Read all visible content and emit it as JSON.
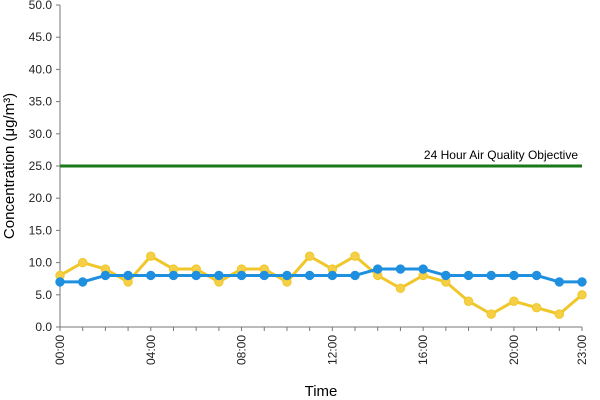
{
  "chart_data": {
    "type": "line",
    "title": "",
    "xlabel": "Time",
    "ylabel": "Concentration (μg/m³)",
    "ylim": [
      0,
      50
    ],
    "y_ticks": [
      "0.0",
      "5.0",
      "10.0",
      "15.0",
      "20.0",
      "25.0",
      "30.0",
      "35.0",
      "40.0",
      "45.0",
      "50.0"
    ],
    "x_tick_labels": [
      "00:00",
      "04:00",
      "08:00",
      "12:00",
      "16:00",
      "20:00",
      "23:00"
    ],
    "x_tick_hours": [
      0,
      4,
      8,
      12,
      16,
      20,
      23
    ],
    "grid": false,
    "legend": "none",
    "x": [
      0,
      1,
      2,
      3,
      4,
      5,
      6,
      7,
      8,
      9,
      10,
      11,
      12,
      13,
      14,
      15,
      16,
      17,
      18,
      19,
      20,
      21,
      22,
      23
    ],
    "series": [
      {
        "color": "#f0c72a",
        "marker_fill": "#f5cf45",
        "values": [
          8,
          10,
          9,
          7,
          11,
          9,
          9,
          7,
          9,
          9,
          7,
          11,
          9,
          11,
          8,
          6,
          8,
          7,
          4,
          2,
          4,
          3,
          2,
          5
        ]
      },
      {
        "color": "#1f8fe0",
        "marker_fill": "#1f8fe0",
        "values": [
          7,
          7,
          8,
          8,
          8,
          8,
          8,
          8,
          8,
          8,
          8,
          8,
          8,
          8,
          9,
          9,
          9,
          8,
          8,
          8,
          8,
          8,
          7,
          7
        ]
      }
    ],
    "reference_line": {
      "label": "24 Hour Air Quality Objective",
      "value": 25,
      "color": "#1a7a1a"
    }
  }
}
